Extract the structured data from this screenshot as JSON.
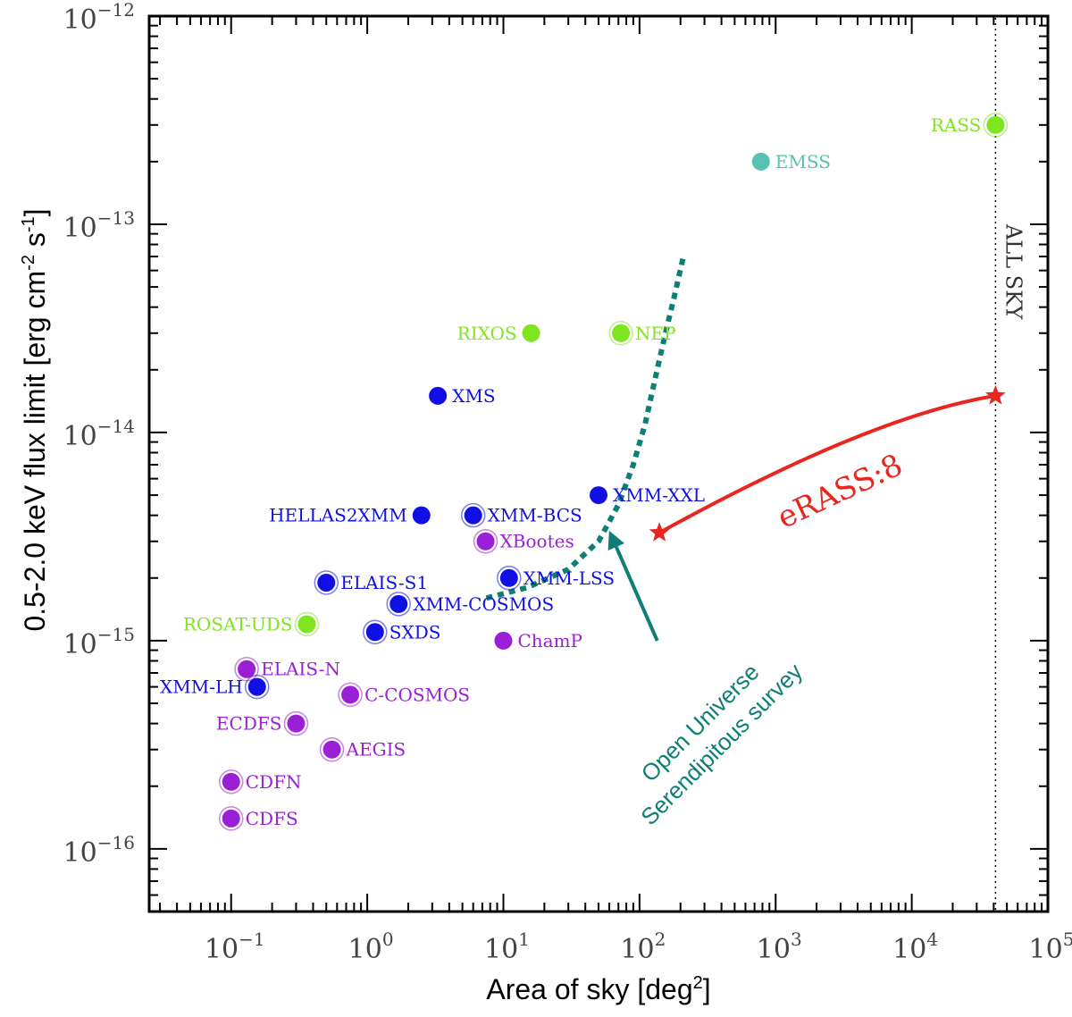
{
  "chart_data": {
    "type": "scatter",
    "xlabel": "Area of sky [deg",
    "xlabel_sup": "2",
    "xlabel_end": "]",
    "ylabel_parts": [
      "0.5-2.0 keV flux limit [erg cm",
      "-2",
      " s",
      "-1",
      "]"
    ],
    "xscale": "log",
    "yscale": "log",
    "xlim": [
      0.025,
      100000
    ],
    "ylim": [
      5e-17,
      1e-12
    ],
    "x_ticks": [
      {
        "value": 0.1,
        "base": "10",
        "exp": "−1"
      },
      {
        "value": 1,
        "base": "10",
        "exp": "0"
      },
      {
        "value": 10,
        "base": "10",
        "exp": "1"
      },
      {
        "value": 100,
        "base": "10",
        "exp": "2"
      },
      {
        "value": 1000,
        "base": "10",
        "exp": "3"
      },
      {
        "value": 10000,
        "base": "10",
        "exp": "4"
      },
      {
        "value": 100000,
        "base": "10",
        "exp": "5"
      }
    ],
    "y_ticks": [
      {
        "value": 1e-12,
        "base": "10",
        "exp": "−12"
      },
      {
        "value": 1e-13,
        "base": "10",
        "exp": "−13"
      },
      {
        "value": 1e-14,
        "base": "10",
        "exp": "−14"
      },
      {
        "value": 1e-15,
        "base": "10",
        "exp": "−15"
      },
      {
        "value": 1e-16,
        "base": "10",
        "exp": "−16"
      }
    ],
    "colors": {
      "rosat": "#7fe51f",
      "xmm": "#1010e6",
      "chandra": "#9a1fd6",
      "einstein": "#58c2b2",
      "erass": "#e8261f",
      "ouss": "#0f7e74"
    },
    "points": [
      {
        "label": "RASS",
        "x": 41253,
        "y": 3e-13,
        "group": "rosat",
        "ring": true,
        "label_side": "left"
      },
      {
        "label": "EMSS",
        "x": 780,
        "y": 2e-13,
        "group": "einstein",
        "ring": false,
        "label_side": "right"
      },
      {
        "label": "RIXOS",
        "x": 16,
        "y": 3e-14,
        "group": "rosat",
        "ring": false,
        "label_side": "left"
      },
      {
        "label": "NEP",
        "x": 73,
        "y": 3e-14,
        "group": "rosat",
        "ring": true,
        "label_side": "right"
      },
      {
        "label": "XMS",
        "x": 3.3,
        "y": 1.5e-14,
        "group": "xmm",
        "ring": false,
        "label_side": "right"
      },
      {
        "label": "XMM-XXL",
        "x": 50,
        "y": 5e-15,
        "group": "xmm",
        "ring": false,
        "label_side": "right"
      },
      {
        "label": "HELLAS2XMM",
        "x": 2.5,
        "y": 4e-15,
        "group": "xmm",
        "ring": false,
        "label_side": "left"
      },
      {
        "label": "XMM-BCS",
        "x": 6,
        "y": 4e-15,
        "group": "xmm",
        "ring": true,
        "label_side": "right"
      },
      {
        "label": "XBootes",
        "x": 7.4,
        "y": 3e-15,
        "group": "chandra",
        "ring": true,
        "label_side": "right"
      },
      {
        "label": "XMM-LSS",
        "x": 11,
        "y": 2e-15,
        "group": "xmm",
        "ring": true,
        "label_side": "right"
      },
      {
        "label": "ELAIS-S1",
        "x": 0.5,
        "y": 1.9e-15,
        "group": "xmm",
        "ring": true,
        "label_side": "right"
      },
      {
        "label": "XMM-COSMOS",
        "x": 1.7,
        "y": 1.5e-15,
        "group": "xmm",
        "ring": true,
        "label_side": "right"
      },
      {
        "label": "ROSAT-UDS",
        "x": 0.36,
        "y": 1.2e-15,
        "group": "rosat",
        "ring": true,
        "label_side": "left"
      },
      {
        "label": "SXDS",
        "x": 1.14,
        "y": 1.1e-15,
        "group": "xmm",
        "ring": true,
        "label_side": "right"
      },
      {
        "label": "ChamP",
        "x": 10,
        "y": 1e-15,
        "group": "chandra",
        "ring": false,
        "label_side": "right"
      },
      {
        "label": "ELAIS-N",
        "x": 0.13,
        "y": 7.3e-16,
        "group": "chandra",
        "ring": true,
        "label_side": "right"
      },
      {
        "label": "XMM-LH",
        "x": 0.155,
        "y": 6e-16,
        "group": "xmm",
        "ring": true,
        "label_side": "left"
      },
      {
        "label": "C-COSMOS",
        "x": 0.75,
        "y": 5.5e-16,
        "group": "chandra",
        "ring": true,
        "label_side": "right"
      },
      {
        "label": "ECDFS",
        "x": 0.3,
        "y": 4e-16,
        "group": "chandra",
        "ring": true,
        "label_side": "left"
      },
      {
        "label": "AEGIS",
        "x": 0.55,
        "y": 3e-16,
        "group": "chandra",
        "ring": true,
        "label_side": "right"
      },
      {
        "label": "CDFN",
        "x": 0.1,
        "y": 2.1e-16,
        "group": "chandra",
        "ring": true,
        "label_side": "right"
      },
      {
        "label": "CDFS",
        "x": 0.1,
        "y": 1.4e-16,
        "group": "chandra",
        "ring": true,
        "label_side": "right"
      }
    ],
    "all_sky": {
      "x": 41253,
      "label": "ALL SKY"
    },
    "erass": {
      "label": "eRASS:8",
      "start": {
        "x": 41253,
        "y": 1.5e-14
      },
      "end": {
        "x": 140,
        "y": 3.3e-15
      },
      "control": {
        "x": 5000,
        "y": 1.2e-14
      }
    },
    "ouss": {
      "label_line1": "Open Universe",
      "label_line2": "Serendipitous survey",
      "curve": [
        {
          "x": 7.5,
          "y": 1.6e-15
        },
        {
          "x": 15,
          "y": 1.8e-15
        },
        {
          "x": 30,
          "y": 2.2e-15
        },
        {
          "x": 50,
          "y": 3e-15
        },
        {
          "x": 70,
          "y": 4.5e-15
        },
        {
          "x": 90,
          "y": 7e-15
        },
        {
          "x": 110,
          "y": 1.1e-14
        },
        {
          "x": 130,
          "y": 1.8e-14
        },
        {
          "x": 155,
          "y": 3e-14
        },
        {
          "x": 180,
          "y": 4.5e-14
        },
        {
          "x": 210,
          "y": 7e-14
        }
      ],
      "arrow_from": {
        "x": 135,
        "y": 1e-15
      },
      "arrow_to": {
        "x": 62,
        "y": 3.2e-15
      }
    }
  }
}
